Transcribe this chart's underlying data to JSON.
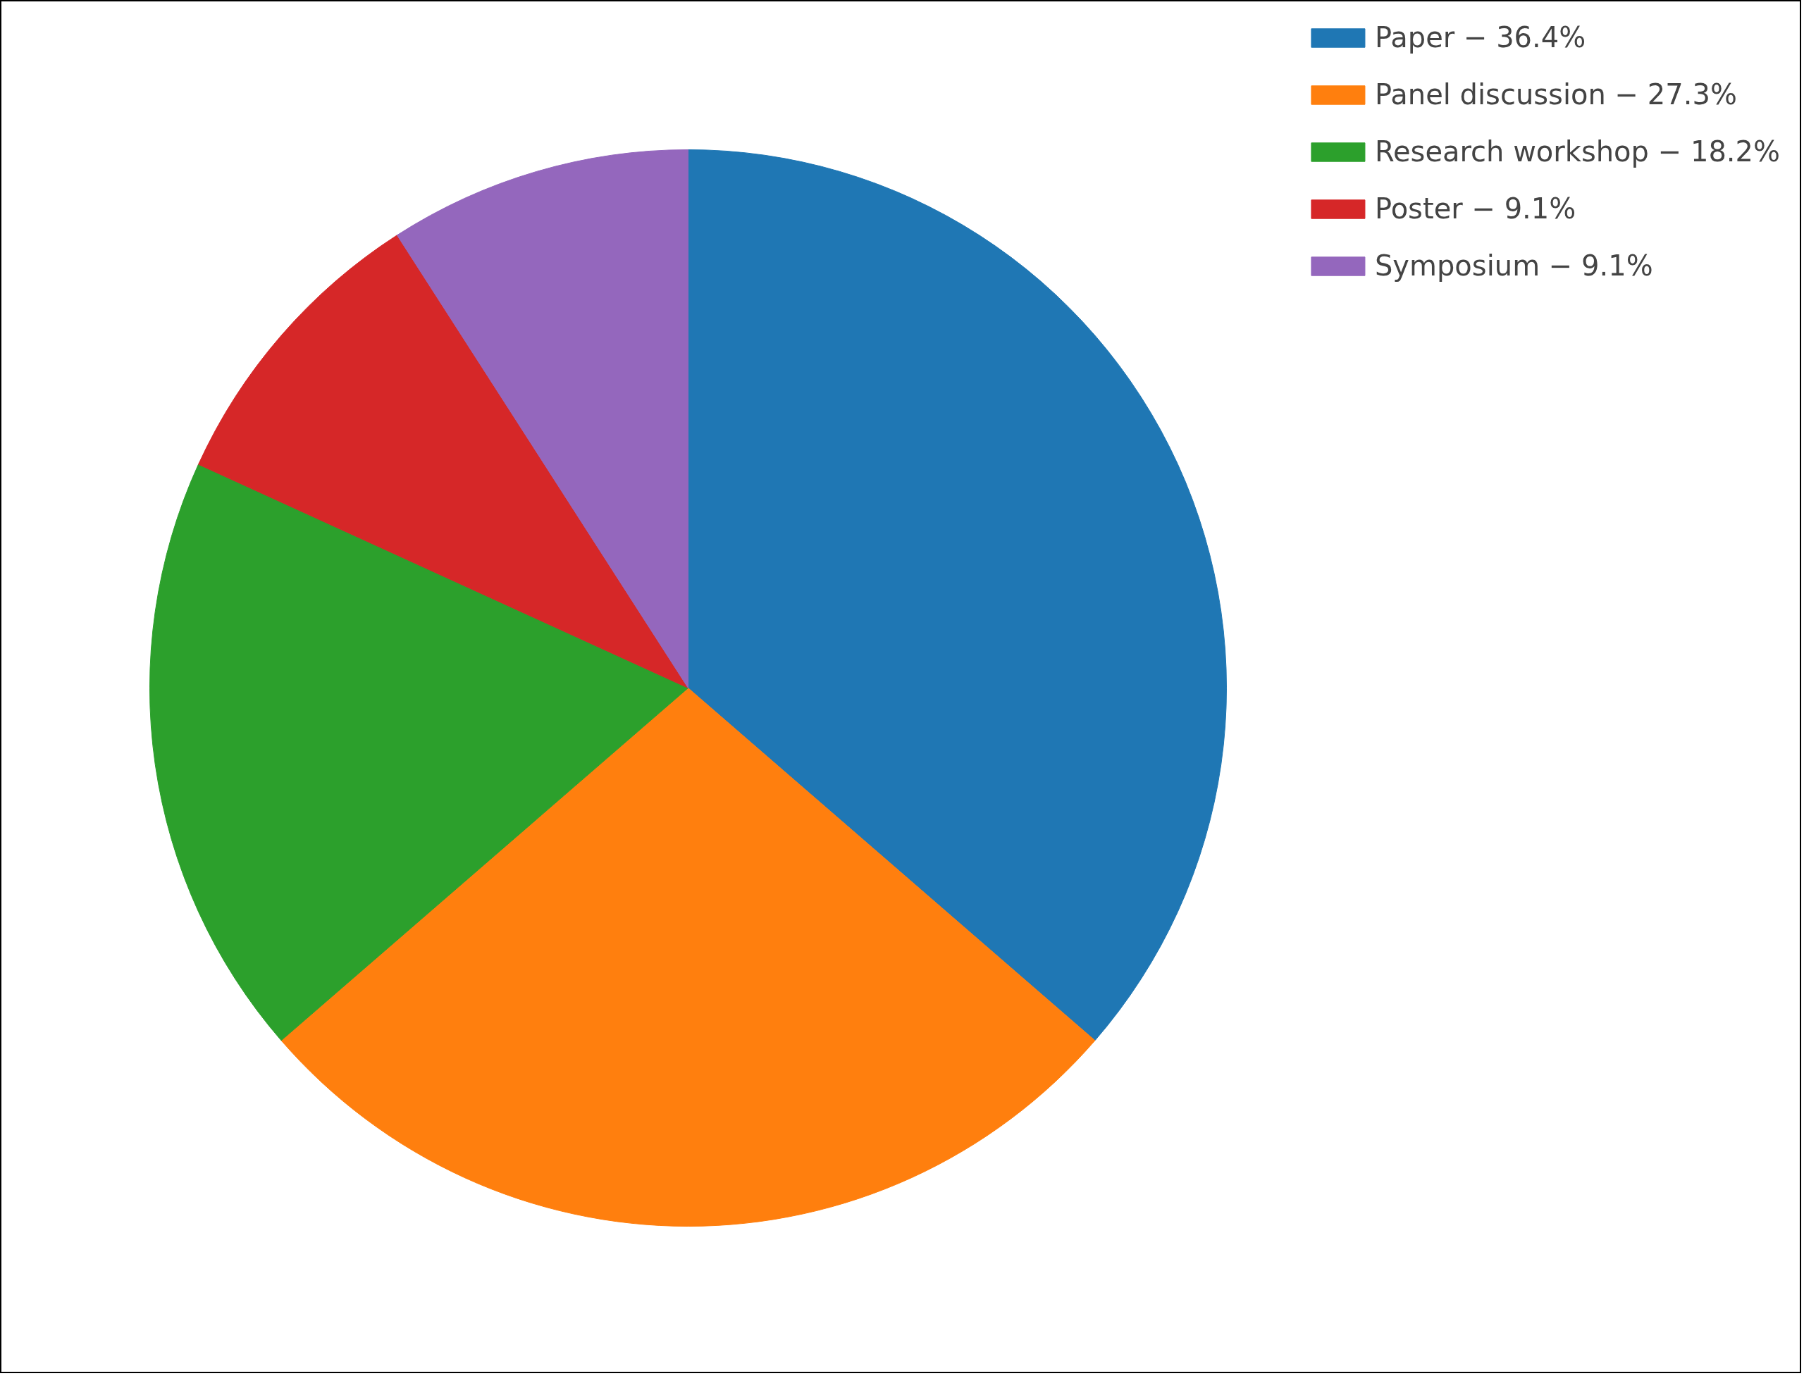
{
  "chart_data": {
    "type": "pie",
    "categories": [
      "Paper − 36.4%",
      "Panel discussion − 27.3%",
      "Research workshop − 18.2%",
      "Poster − 9.1%",
      "Symposium − 9.1%"
    ],
    "values": [
      36.4,
      27.3,
      18.2,
      9.1,
      9.1
    ],
    "colors": [
      "#1f77b4",
      "#ff7f0e",
      "#2ca02c",
      "#d62728",
      "#9467bd"
    ],
    "legend": "top right"
  }
}
